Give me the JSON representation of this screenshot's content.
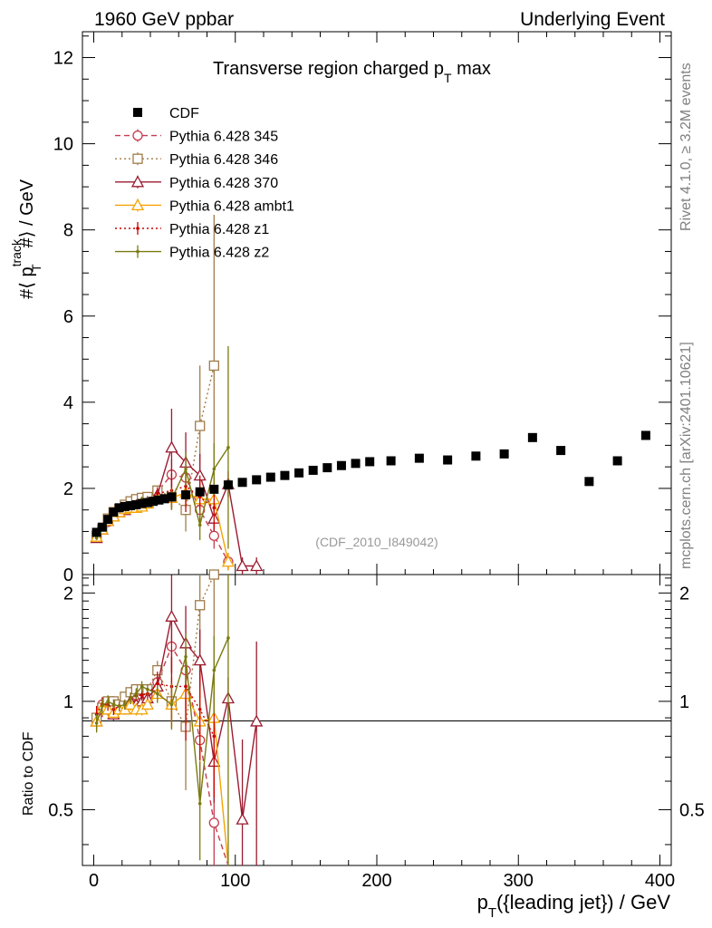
{
  "header": {
    "left": "1960 GeV ppbar",
    "right": "Underlying Event"
  },
  "side": {
    "rivet": "Rivet 4.1.0, ≥ 3.2M events",
    "mcplots": "mcplots.cern.ch [arXiv:2401.10621]"
  },
  "chart_data": {
    "type": "scatter",
    "title": "Transverse region charged p_T max",
    "analysis_tag": "(CDF_2010_I849042)",
    "xlabel": "p_T({leading jet}) / GeV",
    "ylabel": "#⟨ p_T^track #⟩ / GeV",
    "ratio_ylabel": "Ratio to CDF",
    "xlim": [
      -8,
      408
    ],
    "ylim": [
      0,
      12.6
    ],
    "ratio_ylim": [
      0.35,
      2.25
    ],
    "x_ticks": [
      0,
      100,
      200,
      300,
      400
    ],
    "y_ticks": [
      0,
      2,
      4,
      6,
      8,
      10,
      12
    ],
    "ratio_ticks": [
      0.5,
      1,
      2
    ],
    "legend_position": "top-left",
    "series": [
      {
        "name": "CDF",
        "color": "#000000",
        "marker": "filled-square",
        "line": "none",
        "x": [
          2,
          6,
          10,
          14,
          18,
          22,
          26,
          30,
          34,
          38,
          42,
          46,
          50,
          55,
          65,
          75,
          85,
          95,
          105,
          115,
          125,
          135,
          145,
          155,
          165,
          175,
          185,
          195,
          210,
          230,
          250,
          270,
          290,
          310,
          330,
          350,
          370,
          390
        ],
        "y": [
          0.98,
          1.1,
          1.28,
          1.45,
          1.55,
          1.58,
          1.6,
          1.62,
          1.65,
          1.67,
          1.7,
          1.73,
          1.76,
          1.8,
          1.85,
          1.92,
          1.98,
          2.08,
          2.14,
          2.2,
          2.26,
          2.3,
          2.36,
          2.42,
          2.48,
          2.53,
          2.58,
          2.62,
          2.64,
          2.7,
          2.66,
          2.75,
          2.8,
          3.18,
          2.88,
          2.16,
          2.64,
          3.23
        ]
      },
      {
        "name": "Pythia 6.428 345",
        "color": "#c43d4f",
        "marker": "open-circle",
        "line": "dashed",
        "x": [
          2,
          6,
          10,
          14,
          18,
          22,
          26,
          30,
          34,
          38,
          45,
          55,
          65,
          75,
          85,
          95
        ],
        "y": [
          0.88,
          1.08,
          1.22,
          1.38,
          1.5,
          1.55,
          1.63,
          1.68,
          1.72,
          1.73,
          1.92,
          2.32,
          2.25,
          1.5,
          0.9,
          0.3
        ],
        "err": [
          0.05,
          0.05,
          0.05,
          0.05,
          0.05,
          0.05,
          0.05,
          0.05,
          0.06,
          0.06,
          0.12,
          0.35,
          0.5,
          0.4,
          0.3,
          0.2
        ],
        "ratio": [
          0.9,
          0.98,
          0.95,
          0.95,
          0.97,
          0.98,
          1.02,
          1.04,
          1.04,
          1.04,
          1.13,
          1.42,
          1.22,
          0.78,
          0.46,
          0.14
        ]
      },
      {
        "name": "Pythia 6.428 346",
        "color": "#a07c4a",
        "marker": "open-square",
        "line": "dotted",
        "x": [
          2,
          6,
          10,
          14,
          18,
          22,
          26,
          30,
          34,
          38,
          45,
          55,
          65,
          75,
          85
        ],
        "y": [
          0.9,
          1.05,
          1.3,
          1.45,
          1.52,
          1.62,
          1.7,
          1.75,
          1.78,
          1.8,
          1.95,
          1.8,
          1.5,
          3.45,
          4.85
        ],
        "err": [
          0.05,
          0.05,
          0.05,
          0.05,
          0.05,
          0.05,
          0.06,
          0.06,
          0.06,
          0.06,
          0.12,
          0.3,
          0.5,
          1.4,
          3.5
        ],
        "ratio": [
          0.9,
          0.96,
          1.0,
          1.0,
          0.98,
          1.03,
          1.06,
          1.08,
          1.08,
          1.08,
          1.22,
          1.0,
          0.85,
          1.85,
          2.25
        ]
      },
      {
        "name": "Pythia 6.428 370",
        "color": "#9b1b30",
        "marker": "open-triangle",
        "line": "solid",
        "x": [
          2,
          6,
          10,
          14,
          18,
          22,
          26,
          30,
          34,
          38,
          45,
          55,
          65,
          75,
          85,
          95,
          105,
          115
        ],
        "y": [
          0.85,
          1.05,
          1.25,
          1.35,
          1.45,
          1.5,
          1.55,
          1.6,
          1.65,
          1.68,
          1.85,
          2.95,
          2.6,
          2.3,
          1.3,
          2.1,
          0.2,
          0.2
        ],
        "err": [
          0.05,
          0.05,
          0.05,
          0.05,
          0.05,
          0.05,
          0.06,
          0.06,
          0.06,
          0.06,
          0.12,
          0.9,
          0.7,
          0.5,
          0.3,
          0.3,
          0.2,
          0.2
        ],
        "ratio": [
          0.88,
          0.95,
          0.95,
          0.92,
          0.95,
          0.95,
          1.0,
          0.98,
          1.0,
          1.02,
          1.1,
          1.72,
          1.45,
          1.3,
          0.68,
          1.02,
          0.47,
          0.88
        ]
      },
      {
        "name": "Pythia 6.428 ambt1",
        "color": "#f5a300",
        "marker": "open-triangle",
        "line": "solid",
        "x": [
          2,
          6,
          10,
          14,
          18,
          22,
          26,
          30,
          34,
          38,
          45,
          55,
          65,
          75,
          85,
          95
        ],
        "y": [
          0.88,
          1.05,
          1.25,
          1.35,
          1.45,
          1.52,
          1.55,
          1.55,
          1.58,
          1.65,
          1.75,
          1.78,
          1.9,
          1.75,
          1.75,
          0.3
        ],
        "err": [
          0.05,
          0.05,
          0.05,
          0.05,
          0.05,
          0.05,
          0.06,
          0.06,
          0.06,
          0.06,
          0.1,
          0.25,
          0.35,
          0.4,
          0.45,
          0.2
        ],
        "ratio": [
          0.88,
          0.96,
          0.95,
          0.93,
          0.95,
          0.95,
          0.98,
          0.95,
          0.95,
          0.98,
          1.05,
          0.98,
          1.05,
          0.88,
          0.9,
          0.15
        ]
      },
      {
        "name": "Pythia 6.428 z1",
        "color": "#cc0000",
        "marker": "dot",
        "line": "dotted",
        "x": [
          2,
          6,
          10,
          14,
          18,
          22,
          26,
          30,
          34,
          38,
          45,
          55,
          65,
          75,
          85
        ],
        "y": [
          0.9,
          1.05,
          1.28,
          1.4,
          1.5,
          1.55,
          1.62,
          1.66,
          1.72,
          1.75,
          1.88,
          1.95,
          2.05,
          1.8,
          1.55
        ],
        "err": [
          0.05,
          0.05,
          0.05,
          0.05,
          0.05,
          0.05,
          0.06,
          0.06,
          0.06,
          0.06,
          0.15,
          0.4,
          0.6,
          0.5,
          0.5
        ],
        "ratio": [
          0.92,
          0.98,
          0.98,
          0.95,
          0.97,
          0.98,
          1.02,
          1.04,
          1.04,
          1.05,
          1.12,
          1.1,
          1.1,
          0.95,
          0.8
        ]
      },
      {
        "name": "Pythia 6.428 z2",
        "color": "#7a7a10",
        "marker": "dot",
        "line": "solid",
        "x": [
          2,
          6,
          10,
          14,
          18,
          22,
          26,
          30,
          34,
          38,
          45,
          55,
          65,
          75,
          85,
          95
        ],
        "y": [
          0.85,
          1.05,
          1.3,
          1.45,
          1.5,
          1.55,
          1.6,
          1.65,
          1.75,
          1.75,
          1.75,
          1.75,
          2.45,
          1.15,
          2.45,
          2.95
        ],
        "err": [
          0.05,
          0.05,
          0.05,
          0.05,
          0.05,
          0.05,
          0.06,
          0.06,
          0.06,
          0.06,
          0.1,
          0.25,
          0.4,
          0.35,
          0.6,
          2.35
        ],
        "ratio": [
          0.87,
          0.97,
          1.0,
          0.98,
          0.97,
          0.98,
          1.02,
          1.05,
          1.1,
          1.08,
          1.05,
          0.98,
          1.33,
          0.52,
          1.22,
          1.5
        ]
      }
    ]
  }
}
